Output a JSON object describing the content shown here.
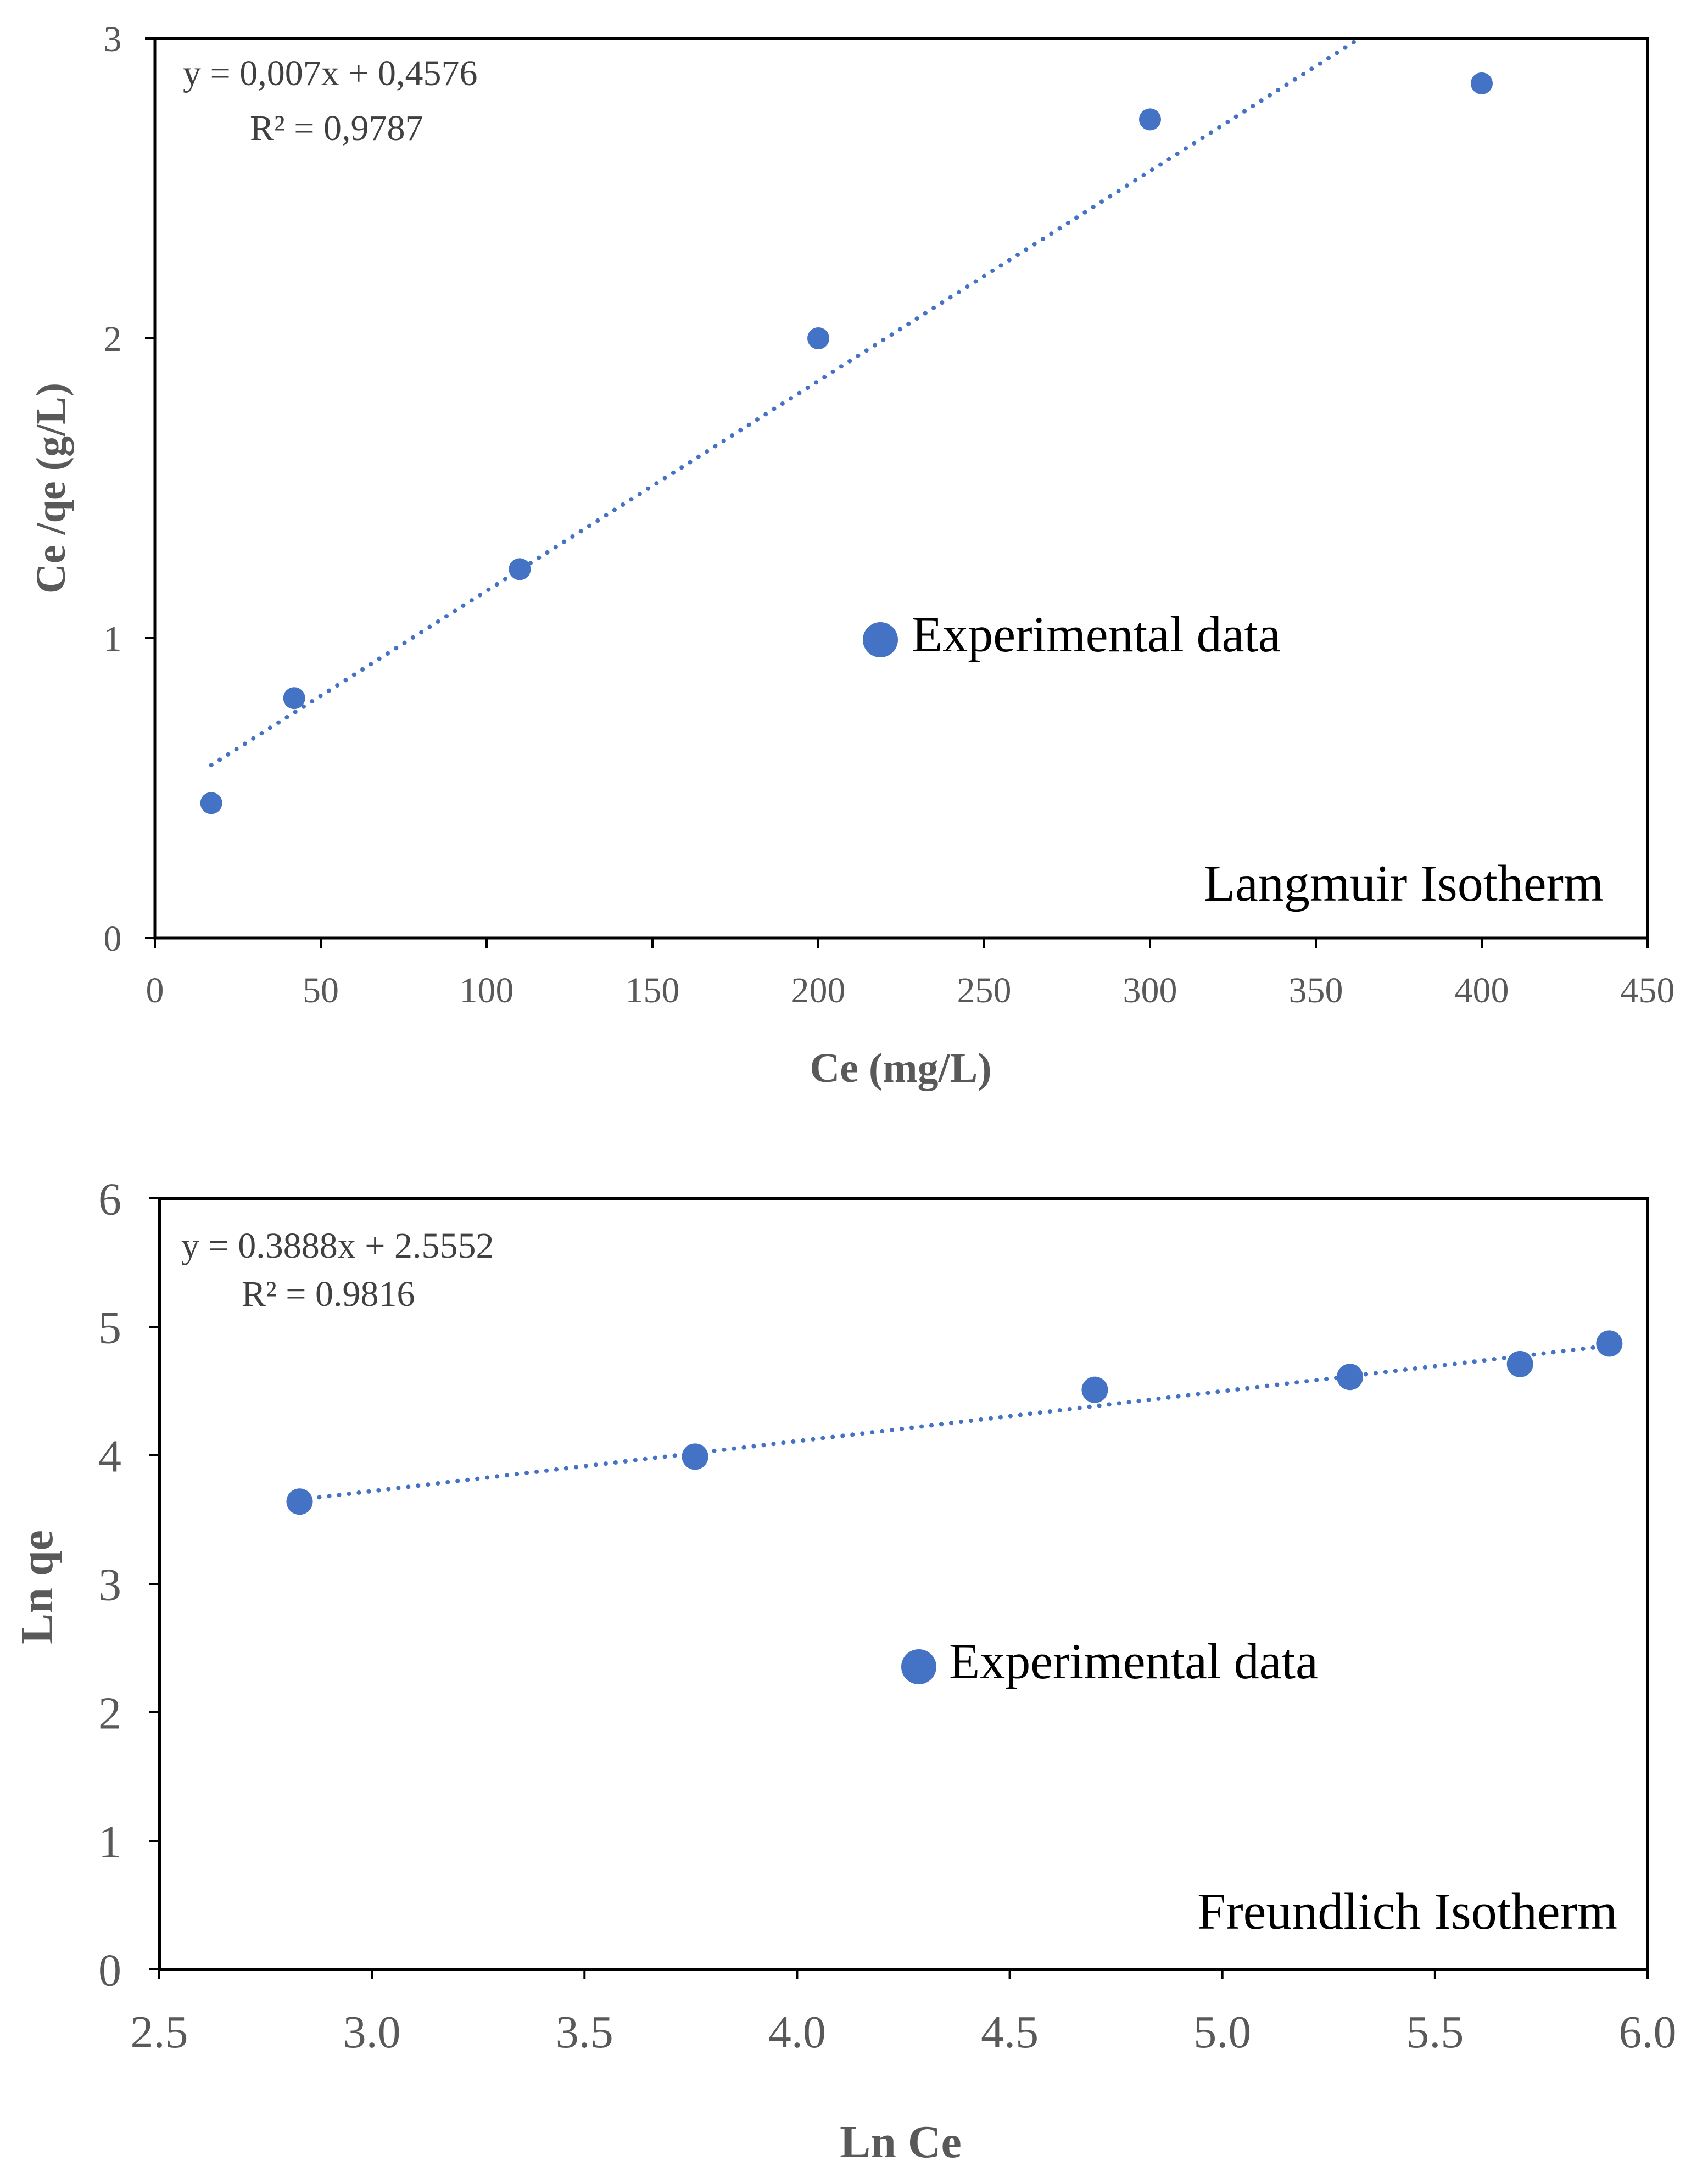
{
  "colors": {
    "series": "#4472C4",
    "axis": "#000000",
    "text": "#595959"
  },
  "chart_data": [
    {
      "type": "scatter",
      "name": "Langmuir Isotherm",
      "xlabel": "Ce (mg/L)",
      "ylabel": "Ce /qe (g/L)",
      "xlim": [
        0,
        450
      ],
      "ylim": [
        0,
        3
      ],
      "xticks": [
        0,
        50,
        100,
        150,
        200,
        250,
        300,
        350,
        400,
        450
      ],
      "yticks": [
        0,
        1,
        2,
        3
      ],
      "xtick_labels": [
        "0",
        "50",
        "100",
        "150",
        "200",
        "250",
        "300",
        "350",
        "400",
        "450"
      ],
      "ytick_labels": [
        "0",
        "1",
        "2",
        "3"
      ],
      "series": [
        {
          "name": "Experimental data",
          "x": [
            17,
            42,
            110,
            200,
            300,
            400
          ],
          "y": [
            0.45,
            0.8,
            1.23,
            2.0,
            2.73,
            2.85
          ]
        }
      ],
      "trendline": {
        "slope": 0.007,
        "intercept": 0.4576,
        "x_start": 17,
        "style": "dotted"
      },
      "equation": "y = 0,007x + 0,4576",
      "r2": "R² = 0,9787",
      "legend_label": "Experimental data",
      "legend_position": "center-right"
    },
    {
      "type": "scatter",
      "name": "Freundlich Isotherm",
      "xlabel": "Ln Ce",
      "ylabel": "Ln qe",
      "xlim": [
        2.5,
        6.0
      ],
      "ylim": [
        0,
        6
      ],
      "xticks": [
        2.5,
        3.0,
        3.5,
        4.0,
        4.5,
        5.0,
        5.5,
        6.0
      ],
      "yticks": [
        0,
        1,
        2,
        3,
        4,
        5,
        6
      ],
      "xtick_labels": [
        "2.5",
        "3.0",
        "3.5",
        "4.0",
        "4.5",
        "5.0",
        "5.5",
        "6.0"
      ],
      "ytick_labels": [
        "0",
        "1",
        "2",
        "3",
        "4",
        "5",
        "6"
      ],
      "series": [
        {
          "name": "Experimental data",
          "x": [
            2.83,
            3.76,
            4.7,
            5.3,
            5.7,
            5.91
          ],
          "y": [
            3.64,
            3.99,
            4.51,
            4.61,
            4.71,
            4.87
          ]
        }
      ],
      "trendline": {
        "slope": 0.3888,
        "intercept": 2.5552,
        "x_start": 2.83,
        "x_end": 5.91,
        "style": "dotted"
      },
      "equation": "y = 0.3888x + 2.5552",
      "r2": "R² = 0.9816",
      "legend_label": "Experimental data",
      "legend_position": "center"
    }
  ]
}
